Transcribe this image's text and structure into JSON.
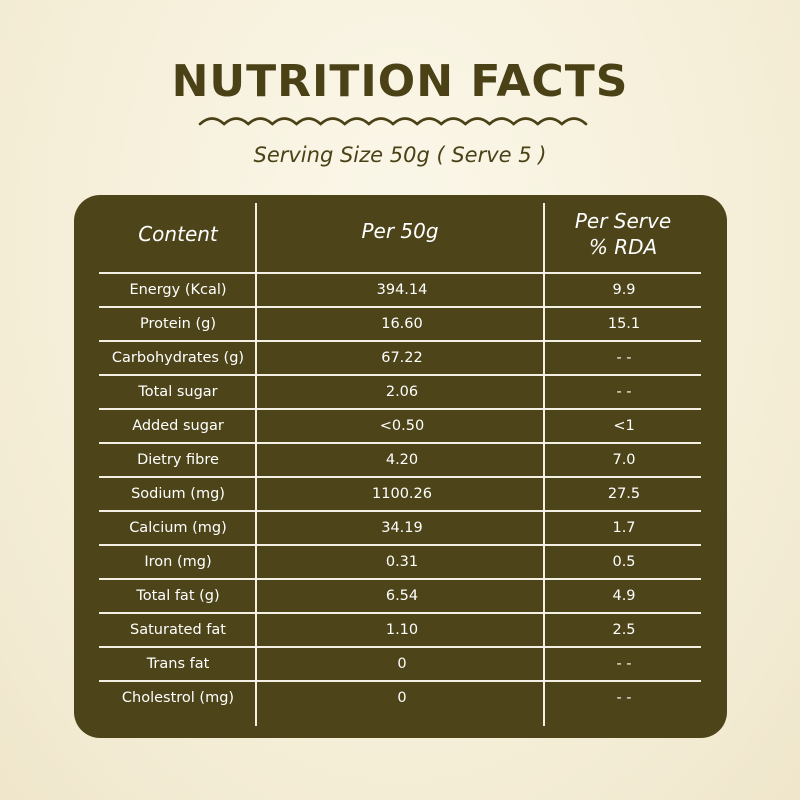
{
  "title": "NUTRITION FACTS",
  "subtitle": "Serving Size 50g ( Serve 5 )",
  "colors": {
    "brown": "#4d4519",
    "text_dark": "#4b4116",
    "background": "#f7f1de"
  },
  "table": {
    "headers": {
      "content": "Content",
      "per_50g": "Per 50g",
      "per_serve_line1": "Per Serve",
      "per_serve_line2": "% RDA"
    },
    "rows": [
      {
        "content": "Energy (Kcal)",
        "per_50g": "394.14",
        "rda": "9.9"
      },
      {
        "content": "Protein (g)",
        "per_50g": "16.60",
        "rda": "15.1"
      },
      {
        "content": "Carbohydrates (g)",
        "per_50g": "67.22",
        "rda": "- -"
      },
      {
        "content": "Total sugar",
        "per_50g": "2.06",
        "rda": "- -"
      },
      {
        "content": "Added sugar",
        "per_50g": "<0.50",
        "rda": "<1"
      },
      {
        "content": "Dietry fibre",
        "per_50g": "4.20",
        "rda": "7.0"
      },
      {
        "content": "Sodium (mg)",
        "per_50g": "1100.26",
        "rda": "27.5"
      },
      {
        "content": "Calcium (mg)",
        "per_50g": "34.19",
        "rda": "1.7"
      },
      {
        "content": "Iron (mg)",
        "per_50g": "0.31",
        "rda": "0.5"
      },
      {
        "content": "Total fat (g)",
        "per_50g": "6.54",
        "rda": "4.9"
      },
      {
        "content": "Saturated fat",
        "per_50g": "1.10",
        "rda": "2.5"
      },
      {
        "content": "Trans fat",
        "per_50g": "0",
        "rda": "- -"
      },
      {
        "content": "Cholestrol (mg)",
        "per_50g": "0",
        "rda": "- -"
      }
    ]
  }
}
